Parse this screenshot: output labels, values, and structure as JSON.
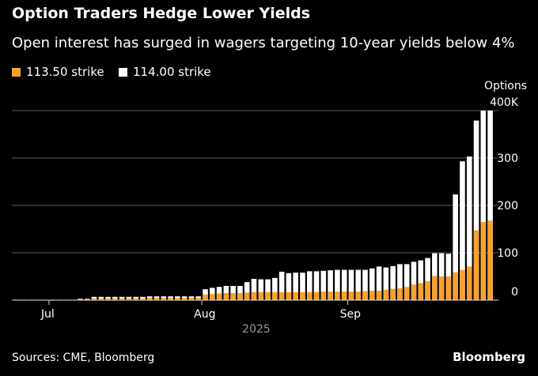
{
  "chart_data": {
    "type": "bar",
    "stacked": false,
    "overlapping": true,
    "title": "Option Traders Hedge Lower Yields",
    "subtitle": "Open interest has surged in wagers targeting 10-year yields below 4%",
    "ylabel": "Options",
    "ylim": [
      0,
      400
    ],
    "yticks": [
      "0",
      "100",
      "200",
      "300",
      "400K"
    ],
    "yticks_values": [
      0,
      100,
      200,
      300,
      400
    ],
    "grid": true,
    "legend": "top-left",
    "x_ticks": [
      {
        "label": "Jul",
        "index": 5
      },
      {
        "label": "Aug",
        "index": 27
      },
      {
        "label": "Sep",
        "index": 48
      }
    ],
    "x_year_label": "2025",
    "series": [
      {
        "name": "114.00 strike",
        "color": "#ffffff",
        "values": [
          1,
          1,
          1,
          1,
          1,
          1,
          1,
          1,
          1,
          3,
          3,
          7,
          7,
          7,
          7,
          7,
          7,
          7,
          7,
          8,
          8,
          8,
          8,
          8,
          8,
          8,
          8,
          23,
          26,
          28,
          30,
          30,
          30,
          38,
          45,
          44,
          44,
          47,
          60,
          57,
          58,
          58,
          61,
          61,
          62,
          63,
          64,
          64,
          64,
          64,
          64,
          67,
          71,
          69,
          72,
          76,
          76,
          81,
          84,
          89,
          99,
          99,
          98,
          223,
          293,
          303,
          379,
          400,
          400
        ]
      },
      {
        "name": "113.50 strike",
        "color": "#f7a12f",
        "values": [
          0.5,
          0.5,
          0.5,
          0.5,
          0.5,
          0.5,
          0.5,
          0.5,
          0.5,
          2,
          2,
          4,
          4,
          4,
          4,
          4,
          4,
          4,
          4,
          5,
          5,
          5,
          5,
          5,
          5,
          5,
          5,
          12,
          13,
          14,
          15,
          15,
          15,
          16,
          17,
          17,
          17,
          17,
          17,
          17,
          17,
          17,
          17,
          17,
          18,
          18,
          18,
          18,
          18,
          18,
          19,
          20,
          20,
          22,
          24,
          25,
          28,
          33,
          36,
          40,
          51,
          50,
          50,
          59,
          64,
          71,
          147,
          165,
          168
        ]
      }
    ]
  },
  "source": "Sources: CME, Bloomberg",
  "brand": "Bloomberg"
}
